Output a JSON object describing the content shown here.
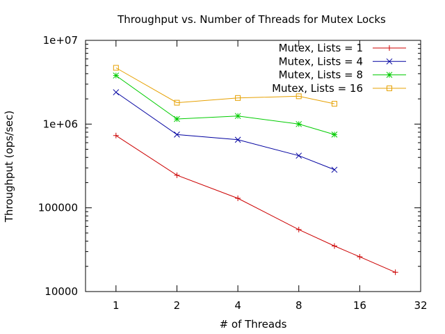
{
  "chart_data": {
    "type": "line",
    "title": "Throughput vs. Number of Threads for Mutex Locks",
    "xlabel": "# of Threads",
    "ylabel": "Throughput (ops/sec)",
    "x_scale": "log2",
    "y_scale": "log10",
    "xlim": [
      0.7071,
      32
    ],
    "ylim": [
      10000,
      10000000
    ],
    "x_ticks": [
      1,
      2,
      4,
      8,
      16,
      32
    ],
    "x_tick_labels": [
      "1",
      "2",
      "4",
      "8",
      "16",
      "32"
    ],
    "y_ticks": [
      10000,
      100000,
      1000000,
      10000000
    ],
    "y_tick_labels": [
      "10000",
      "100000",
      "1e+06",
      "1e+07"
    ],
    "legend_position": "top-right",
    "grid": false,
    "series": [
      {
        "name": "Mutex, Lists = 1",
        "color": "#cc0000",
        "marker": "plus",
        "x": [
          1,
          2,
          4,
          8,
          12,
          16,
          24
        ],
        "y": [
          730000,
          245000,
          130000,
          55000,
          35000,
          26000,
          17000
        ]
      },
      {
        "name": "Mutex, Lists = 4",
        "color": "#0000a0",
        "marker": "cross",
        "x": [
          1,
          2,
          4,
          8,
          12
        ],
        "y": [
          2400000,
          750000,
          650000,
          420000,
          285000
        ]
      },
      {
        "name": "Mutex, Lists = 8",
        "color": "#00cc00",
        "marker": "star",
        "x": [
          1,
          2,
          4,
          8,
          12
        ],
        "y": [
          3800000,
          1150000,
          1250000,
          1000000,
          750000
        ]
      },
      {
        "name": "Mutex, Lists = 16",
        "color": "#e6a000",
        "marker": "square",
        "x": [
          1,
          2,
          4,
          8,
          12
        ],
        "y": [
          4700000,
          1800000,
          2050000,
          2150000,
          1750000
        ]
      }
    ]
  }
}
